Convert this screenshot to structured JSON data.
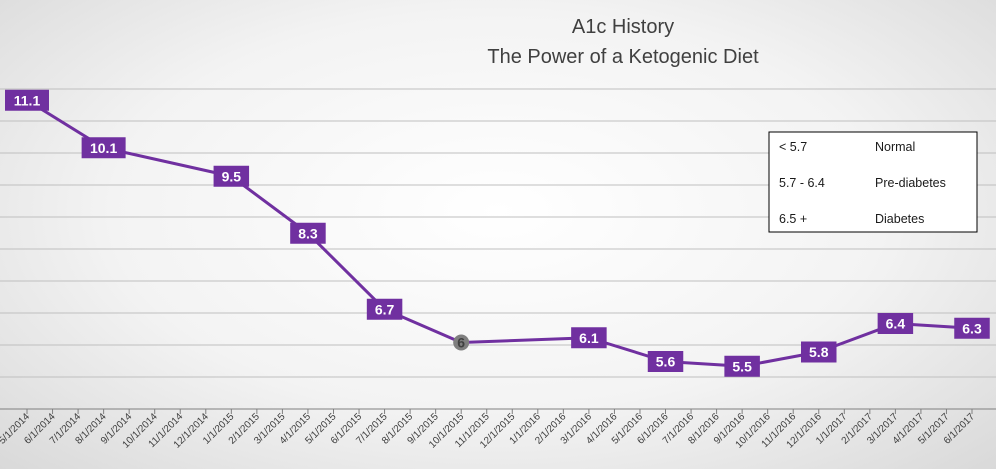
{
  "chart_data": {
    "type": "line",
    "title": "A1c History",
    "subtitle": "The Power of a Ketogenic Diet",
    "xlabel": "",
    "ylabel": "",
    "ylim": [
      4.6,
      12.2
    ],
    "grid": true,
    "categories": [
      "5/1/2014",
      "6/1/2014",
      "7/1/2014",
      "8/1/2014",
      "9/1/2014",
      "10/1/2014",
      "11/1/2014",
      "12/1/2014",
      "1/1/2015",
      "2/1/2015",
      "3/1/2015",
      "4/1/2015",
      "5/1/2015",
      "6/1/2015",
      "7/1/2015",
      "8/1/2015",
      "9/1/2015",
      "10/1/2015",
      "11/1/2015",
      "12/1/2015",
      "1/1/2016",
      "2/1/2016",
      "3/1/2016",
      "4/1/2016",
      "5/1/2016",
      "6/1/2016",
      "7/1/2016",
      "8/1/2016",
      "9/1/2016",
      "10/1/2016",
      "11/1/2016",
      "12/1/2016",
      "1/1/2017",
      "2/1/2017",
      "3/1/2017",
      "4/1/2017",
      "5/1/2017",
      "6/1/2017"
    ],
    "series": [
      {
        "color": "#7030a0",
        "points": [
          {
            "x": "5/1/2014",
            "y": 11.1,
            "label": "11.1"
          },
          {
            "x": "8/1/2014",
            "y": 10.1,
            "label": "10.1"
          },
          {
            "x": "1/1/2015",
            "y": 9.5,
            "label": "9.5"
          },
          {
            "x": "4/1/2015",
            "y": 8.3,
            "label": "8.3"
          },
          {
            "x": "7/1/2015",
            "y": 6.7,
            "label": "6.7"
          },
          {
            "x": "10/1/2015",
            "y": 6.0,
            "label": "6"
          },
          {
            "x": "3/1/2016",
            "y": 6.1,
            "label": "6.1"
          },
          {
            "x": "6/1/2016",
            "y": 5.6,
            "label": "5.6"
          },
          {
            "x": "9/1/2016",
            "y": 5.5,
            "label": "5.5"
          },
          {
            "x": "12/1/2016",
            "y": 5.8,
            "label": "5.8"
          },
          {
            "x": "3/1/2017",
            "y": 6.4,
            "label": "6.4"
          },
          {
            "x": "6/1/2017",
            "y": 6.3,
            "label": "6.3"
          }
        ]
      }
    ],
    "legend": {
      "placement": "top-right",
      "rows": [
        {
          "range": "< 5.7",
          "category": "Normal"
        },
        {
          "range": "5.7 - 6.4",
          "category": "Pre-diabetes"
        },
        {
          "range": "6.5 +",
          "category": "Diabetes"
        }
      ]
    }
  }
}
